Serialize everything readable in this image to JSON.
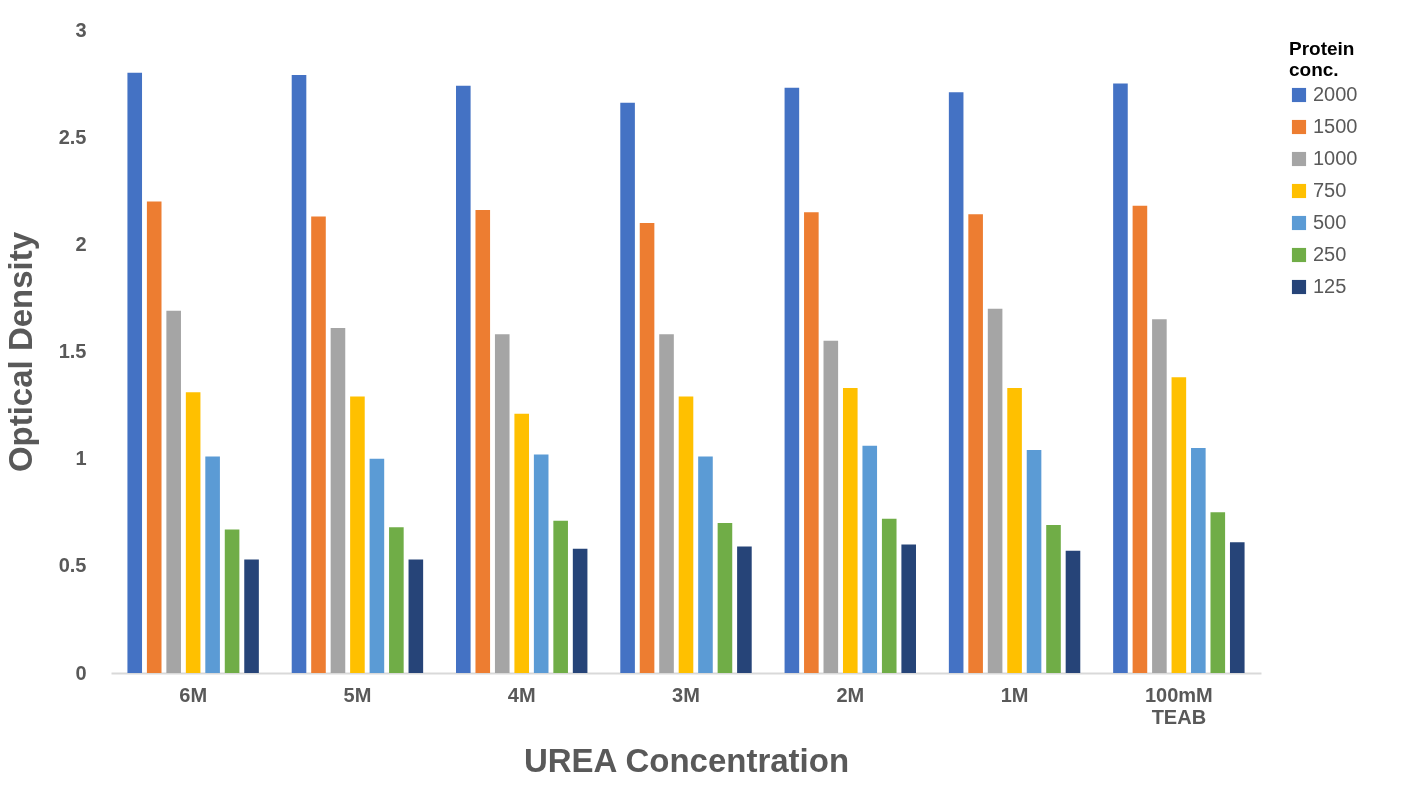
{
  "chart_data": {
    "type": "bar",
    "xlabel": "UREA Concentration",
    "ylabel": "Optical Density",
    "legend_title": "Protein conc.",
    "categories": [
      "6M",
      "5M",
      "4M",
      "3M",
      "2M",
      "1M",
      "100mM TEAB"
    ],
    "series": [
      {
        "name": "2000",
        "color": "#4472c4",
        "values": [
          2.8,
          2.79,
          2.74,
          2.66,
          2.73,
          2.71,
          2.75
        ]
      },
      {
        "name": "1500",
        "color": "#ed7d31",
        "values": [
          2.2,
          2.13,
          2.16,
          2.1,
          2.15,
          2.14,
          2.18
        ]
      },
      {
        "name": "1000",
        "color": "#a5a5a5",
        "values": [
          1.69,
          1.61,
          1.58,
          1.58,
          1.55,
          1.7,
          1.65
        ]
      },
      {
        "name": "750",
        "color": "#ffc000",
        "values": [
          1.31,
          1.29,
          1.21,
          1.29,
          1.33,
          1.33,
          1.38
        ]
      },
      {
        "name": "500",
        "color": "#5b9bd5",
        "values": [
          1.01,
          1.0,
          1.02,
          1.01,
          1.06,
          1.04,
          1.05
        ]
      },
      {
        "name": "250",
        "color": "#70ad47",
        "values": [
          0.67,
          0.68,
          0.71,
          0.7,
          0.72,
          0.69,
          0.75
        ]
      },
      {
        "name": "125",
        "color": "#264478",
        "values": [
          0.53,
          0.53,
          0.58,
          0.59,
          0.6,
          0.57,
          0.61
        ]
      }
    ],
    "ylim": [
      0,
      3
    ],
    "yticks": [
      0,
      0.5,
      1,
      1.5,
      2,
      2.5,
      3
    ],
    "grid": false,
    "legend": "right"
  }
}
